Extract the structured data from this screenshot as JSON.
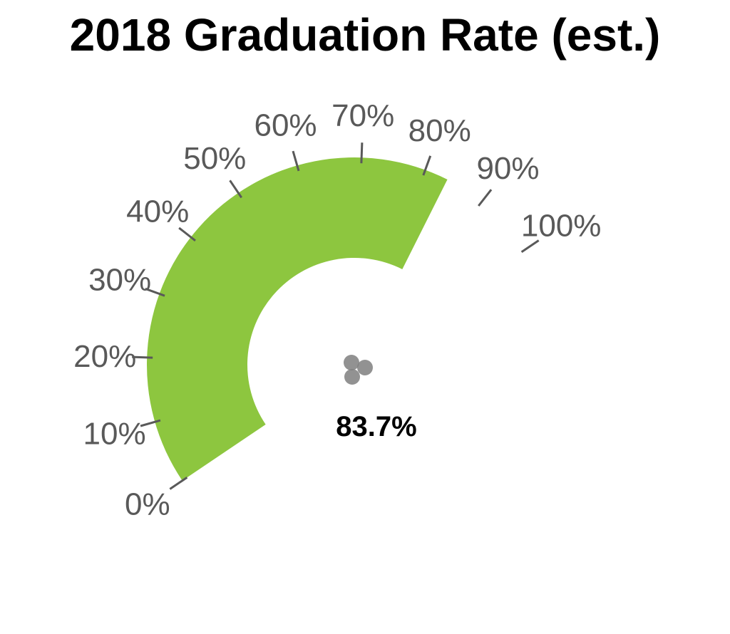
{
  "chart_data": {
    "type": "gauge",
    "title": "2018 Graduation Rate (est.)",
    "value": 83.7,
    "value_label": "83.7%",
    "min": 0,
    "max": 100,
    "ticks": [
      {
        "value": 0,
        "label": "0%"
      },
      {
        "value": 10,
        "label": "10%"
      },
      {
        "value": 20,
        "label": "20%"
      },
      {
        "value": 30,
        "label": "30%"
      },
      {
        "value": 40,
        "label": "40%"
      },
      {
        "value": 50,
        "label": "50%"
      },
      {
        "value": 60,
        "label": "60%"
      },
      {
        "value": 70,
        "label": "70%"
      },
      {
        "value": 80,
        "label": "80%"
      },
      {
        "value": 90,
        "label": "90%"
      },
      {
        "value": 100,
        "label": "100%"
      }
    ],
    "band_color": "#8DC63F",
    "tick_color": "#595959",
    "needle_color": "#7F7F7F"
  }
}
